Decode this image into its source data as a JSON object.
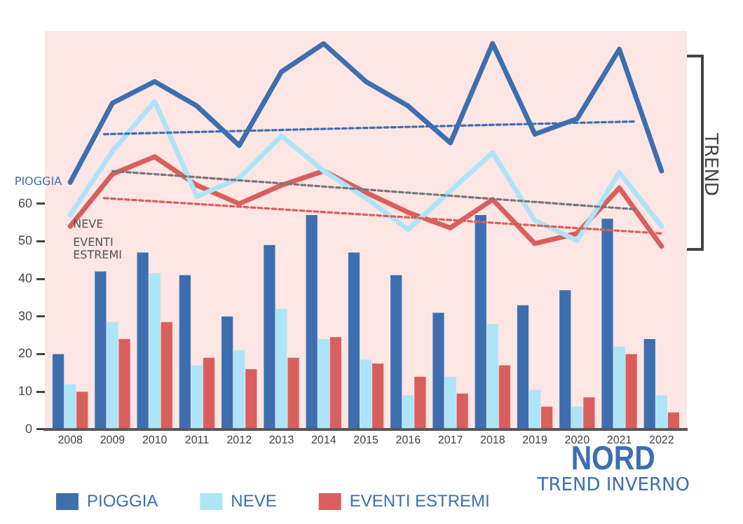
{
  "chart_data": {
    "type": "bar",
    "title": "NORD",
    "subtitle": "TREND INVERNO",
    "x": [
      2008,
      2009,
      2010,
      2011,
      2012,
      2013,
      2014,
      2015,
      2016,
      2017,
      2018,
      2019,
      2020,
      2021,
      2022
    ],
    "xlim": [
      2007.4,
      2022.6
    ],
    "xticks": [
      2008,
      2009,
      2010,
      2011,
      2012,
      2013,
      2014,
      2015,
      2016,
      2017,
      2018,
      2019,
      2020,
      2021,
      2022
    ],
    "ylim": [
      0,
      106
    ],
    "yticks": [
      0,
      10,
      20,
      30,
      40,
      50,
      60
    ],
    "grid": false,
    "legend": "bottom",
    "marker": "none",
    "annotations": [
      "TREND"
    ],
    "series": [
      {
        "name": "PIOGGIA",
        "color": "#3d6fb0",
        "values": [
          20,
          42,
          47,
          41,
          30,
          49,
          57,
          47,
          41,
          31,
          57,
          33,
          37,
          56,
          24
        ]
      },
      {
        "name": "NEVE",
        "color": "#aee4f7",
        "values": [
          12,
          28.5,
          41.5,
          17,
          21,
          32,
          24,
          18.5,
          9,
          14,
          28,
          10.5,
          6,
          22,
          9
        ]
      },
      {
        "name": "EVENTI ESTREMI",
        "color": "#d95f5f",
        "values": [
          10,
          24,
          28.5,
          19,
          16,
          19,
          24.5,
          17.5,
          14,
          9.5,
          17,
          6,
          8.5,
          20,
          4.5
        ]
      },
      {
        "type": "line",
        "name": "PIOGGIA",
        "color": "#3d6fb0",
        "line_style": "solid",
        "values": [
          65.7,
          86.8,
          92.5,
          86,
          75.5,
          95.1,
          102.6,
          92.5,
          86,
          76.2,
          102.6,
          78.5,
          82.6,
          101.1,
          68.7
        ]
      },
      {
        "type": "line",
        "name": "NEVE",
        "color": "#aee4f7",
        "line_style": "solid",
        "values": [
          57,
          74,
          87.2,
          61.9,
          66.8,
          78.1,
          68.7,
          61.5,
          53.2,
          63.4,
          73.6,
          55.5,
          50.2,
          68.3,
          54
        ]
      },
      {
        "type": "line",
        "name": "EVENTI ESTREMI",
        "color": "#d95f5f",
        "line_style": "solid",
        "values": [
          54,
          67.9,
          72.5,
          64.9,
          60,
          64.9,
          68.7,
          63,
          57.7,
          53.6,
          61.1,
          49.4,
          52.1,
          64.2,
          48.7
        ]
      },
      {
        "type": "line",
        "color": "#3d6fb0",
        "line_style": "dotted",
        "x": [
          2008.8,
          2021.4
        ],
        "values": [
          78.5,
          81.9
        ]
      },
      {
        "type": "line",
        "color": "#777777",
        "line_style": "dotted",
        "x": [
          2009,
          2021.4
        ],
        "values": [
          68.7,
          58.5
        ]
      },
      {
        "type": "line",
        "color": "#d95f5f",
        "line_style": "dotted",
        "x": [
          2008.8,
          2022
        ],
        "values": [
          61.5,
          52.1
        ]
      }
    ]
  }
}
